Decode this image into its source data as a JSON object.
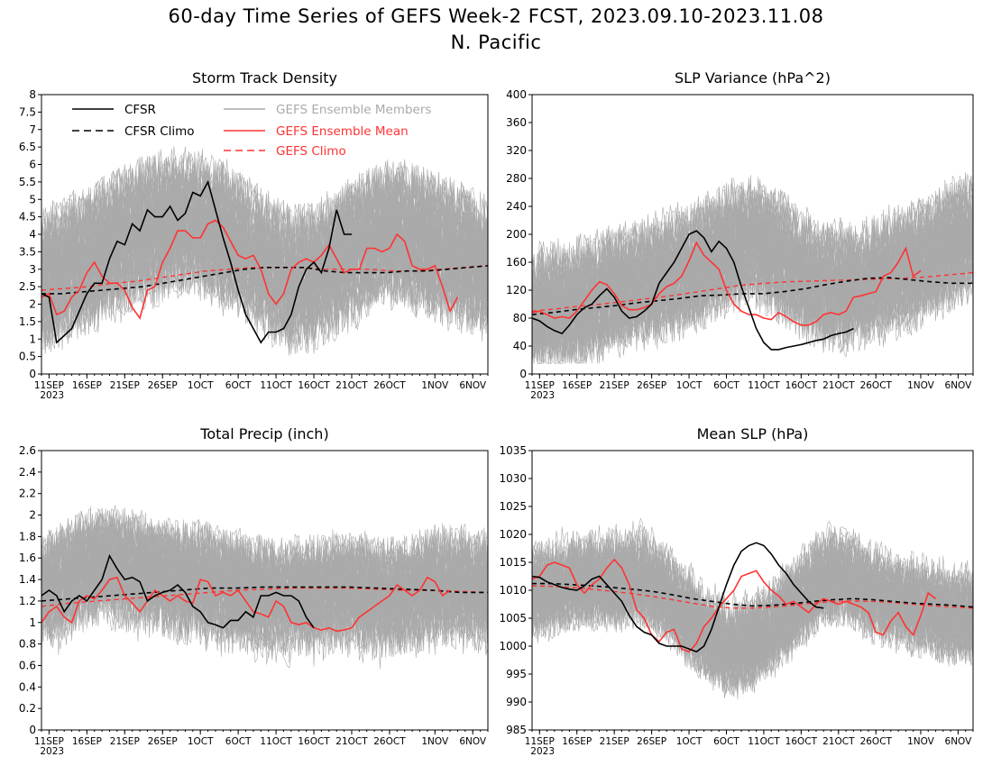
{
  "figure": {
    "title": "60-day Time Series of GEFS Week-2 FCST, 2023.09.10-2023.11.08",
    "subtitle": "N. Pacific"
  },
  "colors": {
    "cfsr": "#000000",
    "ensemble_mean": "#ff3333",
    "ensemble_members": "#aaaaaa",
    "legend_members_text": "#aaaaaa",
    "legend_red_text": "#ff3333"
  },
  "legend": {
    "placement": "top-left of first panel",
    "entries": [
      {
        "label": "CFSR",
        "style": "solid",
        "color": "#000000"
      },
      {
        "label": "CFSR Climo",
        "style": "dashed",
        "color": "#000000"
      },
      {
        "label": "GEFS Ensemble Members",
        "style": "solid",
        "color": "#aaaaaa"
      },
      {
        "label": "GEFS Ensemble Mean",
        "style": "solid",
        "color": "#ff3333"
      },
      {
        "label": "GEFS Climo",
        "style": "dashed",
        "color": "#ff3333"
      }
    ]
  },
  "chart_data": [
    {
      "type": "line",
      "title": "Storm Track Density",
      "x_range": [
        0,
        59
      ],
      "x_start": "2023-09-10",
      "xtick_labels": [
        "11SEP",
        "16SEP",
        "21SEP",
        "26SEP",
        "1OCT",
        "6OCT",
        "11OCT",
        "16OCT",
        "21OCT",
        "26OCT",
        "1NOV",
        "6NOV"
      ],
      "xtick_days": [
        1,
        6,
        11,
        16,
        21,
        26,
        31,
        36,
        41,
        46,
        52,
        57
      ],
      "year_label": "2023",
      "ylim": [
        0,
        8
      ],
      "yticks": [
        0,
        0.5,
        1,
        1.5,
        2,
        2.5,
        3,
        3.5,
        4,
        4.5,
        5,
        5.5,
        6,
        6.5,
        7,
        7.5,
        8
      ],
      "ytick_labels": [
        "0",
        "0.5",
        "1",
        "1.5",
        "2",
        "2.5",
        "3",
        "3.5",
        "4",
        "4.5",
        "5",
        "5.5",
        "6",
        "6.5",
        "7",
        "7.5",
        "8"
      ],
      "members_spread": {
        "center": [
          2.6,
          2.9,
          3.2,
          3.6,
          3.9,
          4.1,
          4.3,
          4.3,
          4.0,
          3.6,
          3.1,
          2.7,
          2.7,
          3.1,
          3.5,
          3.9,
          4.0,
          3.8,
          3.5,
          3.3,
          3.0
        ],
        "amp": 1.8,
        "floor": 0,
        "ceiling": 7.9
      },
      "series": [
        {
          "name": "CFSR",
          "values": [
            2.3,
            2.2,
            0.9,
            1.1,
            1.3,
            1.8,
            2.3,
            2.6,
            2.6,
            3.3,
            3.8,
            3.7,
            4.3,
            4.1,
            4.7,
            4.5,
            4.5,
            4.8,
            4.4,
            4.6,
            5.2,
            5.1,
            5.5,
            4.7,
            3.9,
            3.2,
            2.4,
            1.7,
            1.3,
            0.9,
            1.2,
            1.2,
            1.3,
            1.7,
            2.5,
            3.0,
            3.2,
            2.9,
            3.6,
            4.7,
            4.0,
            4.0
          ]
        },
        {
          "name": "CFSR Climo",
          "values": [
            2.3,
            2.3,
            2.35,
            2.4,
            2.45,
            2.5,
            2.6,
            2.7,
            2.8,
            2.9,
            3.0,
            3.05,
            3.05,
            3.05,
            2.95,
            2.9,
            2.9,
            2.9,
            2.95,
            2.95,
            3.0,
            3.05,
            3.1
          ]
        },
        {
          "name": "GEFS Ensemble Mean",
          "values": [
            2.2,
            2.3,
            1.7,
            1.8,
            2.2,
            2.4,
            2.9,
            3.2,
            2.8,
            2.6,
            2.6,
            2.4,
            1.9,
            1.6,
            2.4,
            2.5,
            3.2,
            3.6,
            4.1,
            4.1,
            3.9,
            3.9,
            4.3,
            4.4,
            4.2,
            3.8,
            3.4,
            3.3,
            3.4,
            3.0,
            2.3,
            2.0,
            2.3,
            3.0,
            3.2,
            3.3,
            3.2,
            3.4,
            3.7,
            3.3,
            2.9,
            3.0,
            3.0,
            3.6,
            3.6,
            3.5,
            3.6,
            4.0,
            3.8,
            3.1,
            3.0,
            3.0,
            3.1,
            2.5,
            1.8,
            2.2
          ]
        },
        {
          "name": "GEFS Climo",
          "values": [
            2.4,
            2.45,
            2.5,
            2.6,
            2.65,
            2.75,
            2.85,
            2.95,
            3.0,
            3.05,
            3.05,
            3.05,
            3.0,
            3.0,
            3.0,
            2.95,
            2.95,
            3.0,
            3.05,
            3.1
          ]
        }
      ]
    },
    {
      "type": "line",
      "title": "SLP Variance (hPa^2)",
      "x_range": [
        0,
        59
      ],
      "x_start": "2023-09-10",
      "xtick_labels": [
        "11SEP",
        "16SEP",
        "21SEP",
        "26SEP",
        "1OCT",
        "6OCT",
        "11OCT",
        "16OCT",
        "21OCT",
        "26OCT",
        "1NOV",
        "6NOV"
      ],
      "xtick_days": [
        1,
        6,
        11,
        16,
        21,
        26,
        31,
        36,
        41,
        46,
        52,
        57
      ],
      "year_label": "2023",
      "ylim": [
        0,
        400
      ],
      "yticks": [
        0,
        40,
        80,
        120,
        160,
        200,
        240,
        280,
        320,
        360,
        400
      ],
      "ytick_labels": [
        "0",
        "40",
        "80",
        "120",
        "160",
        "200",
        "240",
        "280",
        "320",
        "360",
        "400"
      ],
      "members_spread": {
        "center": [
          90,
          95,
          100,
          110,
          120,
          130,
          140,
          150,
          165,
          180,
          190,
          175,
          150,
          130,
          125,
          130,
          140,
          150,
          165,
          185,
          200
        ],
        "amp": 80,
        "floor": 15,
        "ceiling": 395
      },
      "series": [
        {
          "name": "CFSR",
          "values": [
            80,
            76,
            68,
            62,
            58,
            70,
            85,
            95,
            100,
            112,
            122,
            110,
            90,
            80,
            82,
            90,
            100,
            130,
            145,
            160,
            180,
            200,
            205,
            195,
            175,
            190,
            180,
            160,
            125,
            95,
            65,
            45,
            35,
            35,
            38,
            40,
            42,
            45,
            48,
            50,
            55,
            58,
            60,
            65
          ]
        },
        {
          "name": "CFSR Climo",
          "values": [
            85,
            88,
            92,
            95,
            98,
            102,
            105,
            108,
            112,
            113,
            115,
            115,
            118,
            122,
            128,
            133,
            137,
            138,
            135,
            132,
            130,
            130
          ]
        },
        {
          "name": "GEFS Ensemble Mean",
          "values": [
            88,
            90,
            85,
            80,
            82,
            80,
            90,
            105,
            120,
            132,
            128,
            115,
            98,
            92,
            92,
            95,
            100,
            115,
            125,
            130,
            140,
            162,
            188,
            170,
            160,
            150,
            120,
            100,
            90,
            85,
            85,
            80,
            78,
            88,
            82,
            75,
            70,
            70,
            75,
            85,
            88,
            85,
            90,
            110,
            112,
            115,
            118,
            140,
            145,
            160,
            180,
            140,
            148
          ]
        },
        {
          "name": "GEFS Climo",
          "values": [
            90,
            93,
            97,
            100,
            104,
            108,
            112,
            117,
            122,
            127,
            130,
            132,
            133,
            134,
            135,
            136,
            137,
            139,
            142,
            145
          ]
        }
      ]
    },
    {
      "type": "line",
      "title": "Total Precip (inch)",
      "x_range": [
        0,
        59
      ],
      "x_start": "2023-09-10",
      "xtick_labels": [
        "11SEP",
        "16SEP",
        "21SEP",
        "26SEP",
        "1OCT",
        "6OCT",
        "11OCT",
        "16OCT",
        "21OCT",
        "26OCT",
        "1NOV",
        "6NOV"
      ],
      "xtick_days": [
        1,
        6,
        11,
        16,
        21,
        26,
        31,
        36,
        41,
        46,
        52,
        57
      ],
      "year_label": "2023",
      "ylim": [
        0,
        2.6
      ],
      "yticks": [
        0,
        0.2,
        0.4,
        0.6,
        0.8,
        1,
        1.2,
        1.4,
        1.6,
        1.8,
        2,
        2.2,
        2.4,
        2.6
      ],
      "ytick_labels": [
        "0",
        "0.2",
        "0.4",
        "0.6",
        "0.8",
        "1",
        "1.2",
        "1.4",
        "1.6",
        "1.8",
        "2",
        "2.2",
        "2.4",
        "2.6"
      ],
      "members_spread": {
        "center": [
          1.25,
          1.35,
          1.45,
          1.5,
          1.45,
          1.4,
          1.35,
          1.35,
          1.3,
          1.25,
          1.2,
          1.2,
          1.2,
          1.25,
          1.25,
          1.2,
          1.2,
          1.25,
          1.3,
          1.3,
          1.25
        ],
        "amp": 0.5,
        "floor": 0.25,
        "ceiling": 2.6
      },
      "series": [
        {
          "name": "CFSR",
          "values": [
            1.25,
            1.3,
            1.25,
            1.1,
            1.2,
            1.25,
            1.2,
            1.3,
            1.4,
            1.62,
            1.5,
            1.4,
            1.42,
            1.38,
            1.2,
            1.25,
            1.28,
            1.3,
            1.35,
            1.28,
            1.15,
            1.1,
            1.0,
            0.98,
            0.95,
            1.02,
            1.02,
            1.1,
            1.05,
            1.25,
            1.25,
            1.28,
            1.25,
            1.25,
            1.2,
            1.05,
            0.95
          ]
        },
        {
          "name": "CFSR Climo",
          "values": [
            1.2,
            1.22,
            1.24,
            1.26,
            1.28,
            1.3,
            1.32,
            1.32,
            1.33,
            1.33,
            1.33,
            1.33,
            1.32,
            1.31,
            1.3,
            1.28,
            1.28
          ]
        },
        {
          "name": "GEFS Ensemble Mean",
          "values": [
            1.0,
            1.1,
            1.15,
            1.05,
            1.0,
            1.2,
            1.25,
            1.22,
            1.3,
            1.4,
            1.42,
            1.25,
            1.18,
            1.1,
            1.2,
            1.3,
            1.25,
            1.2,
            1.25,
            1.2,
            1.18,
            1.4,
            1.38,
            1.25,
            1.28,
            1.25,
            1.3,
            1.2,
            1.1,
            1.08,
            1.05,
            1.2,
            1.15,
            1.0,
            0.98,
            1.0,
            0.95,
            0.93,
            0.95,
            0.92,
            0.93,
            0.95,
            1.05,
            1.1,
            1.15,
            1.2,
            1.25,
            1.35,
            1.3,
            1.25,
            1.3,
            1.42,
            1.38,
            1.25,
            1.3
          ]
        },
        {
          "name": "GEFS Climo",
          "values": [
            1.15,
            1.18,
            1.2,
            1.22,
            1.24,
            1.26,
            1.28,
            1.3,
            1.31,
            1.32,
            1.32,
            1.32,
            1.31,
            1.3,
            1.3,
            1.29,
            1.28
          ]
        }
      ]
    },
    {
      "type": "line",
      "title": "Mean SLP (hPa)",
      "x_range": [
        0,
        59
      ],
      "x_start": "2023-09-10",
      "xtick_labels": [
        "11SEP",
        "16SEP",
        "21SEP",
        "26SEP",
        "1OCT",
        "6OCT",
        "11OCT",
        "16OCT",
        "21OCT",
        "26OCT",
        "1NOV",
        "6NOV"
      ],
      "xtick_days": [
        1,
        6,
        11,
        16,
        21,
        26,
        31,
        36,
        41,
        46,
        52,
        57
      ],
      "year_label": "2023",
      "ylim": [
        985,
        1035
      ],
      "yticks": [
        985,
        990,
        995,
        1000,
        1005,
        1010,
        1015,
        1020,
        1025,
        1030,
        1035
      ],
      "ytick_labels": [
        "985",
        "990",
        "995",
        "1000",
        "1005",
        "1010",
        "1015",
        "1020",
        "1025",
        "1030",
        "1035"
      ],
      "members_spread": {
        "center": [
          1010,
          1011,
          1012,
          1012,
          1012,
          1013,
          1010,
          1006,
          1002,
          1000,
          1001,
          1004,
          1008,
          1012,
          1013,
          1011,
          1009,
          1008,
          1007,
          1006,
          1006
        ],
        "amp": 8,
        "floor": 986,
        "ceiling": 1027
      },
      "series": [
        {
          "name": "CFSR",
          "values": [
            1012.5,
            1012.3,
            1011.5,
            1011,
            1010.5,
            1010.2,
            1010,
            1010.8,
            1012,
            1012.5,
            1011,
            1009.5,
            1008,
            1005.5,
            1003.5,
            1002.5,
            1002,
            1000.5,
            1000,
            1000,
            1000,
            999.5,
            999,
            1000,
            1003,
            1007,
            1011,
            1014.5,
            1017,
            1018,
            1018.5,
            1018,
            1016.5,
            1014.5,
            1013,
            1011,
            1009.5,
            1008,
            1007,
            1006.8
          ]
        },
        {
          "name": "CFSR Climo",
          "values": [
            1011.2,
            1011.2,
            1011,
            1010.8,
            1010.5,
            1010.2,
            1009.8,
            1009.2,
            1008.5,
            1008,
            1007.5,
            1007.2,
            1007.3,
            1007.6,
            1008,
            1008.3,
            1008.5,
            1008.3,
            1008,
            1007.7,
            1007.5,
            1007.3,
            1007
          ]
        },
        {
          "name": "GEFS Ensemble Mean",
          "values": [
            1012,
            1012.5,
            1014.5,
            1015,
            1014.5,
            1014,
            1011,
            1009.5,
            1011,
            1012,
            1014,
            1015.5,
            1014,
            1011,
            1006.5,
            1005,
            1002,
            1000.8,
            1002.5,
            1003,
            999.5,
            999,
            1000.5,
            1003.5,
            1005,
            1007,
            1008.5,
            1010,
            1012.5,
            1013,
            1013.5,
            1011.5,
            1010,
            1009,
            1007.5,
            1008,
            1007,
            1006,
            1007.5,
            1008.5,
            1008,
            1007.5,
            1008,
            1007.5,
            1007,
            1006,
            1002.5,
            1002,
            1004.5,
            1006,
            1003.5,
            1002,
            1005.5,
            1009.5,
            1008.5
          ]
        },
        {
          "name": "GEFS Climo",
          "values": [
            1010.8,
            1010.7,
            1010.5,
            1010.2,
            1009.8,
            1009.4,
            1008.9,
            1008.3,
            1007.7,
            1007.1,
            1006.8,
            1006.8,
            1007,
            1007.3,
            1007.7,
            1008,
            1008.1,
            1008,
            1007.8,
            1007.5,
            1007.2,
            1007,
            1006.8
          ]
        }
      ]
    }
  ]
}
